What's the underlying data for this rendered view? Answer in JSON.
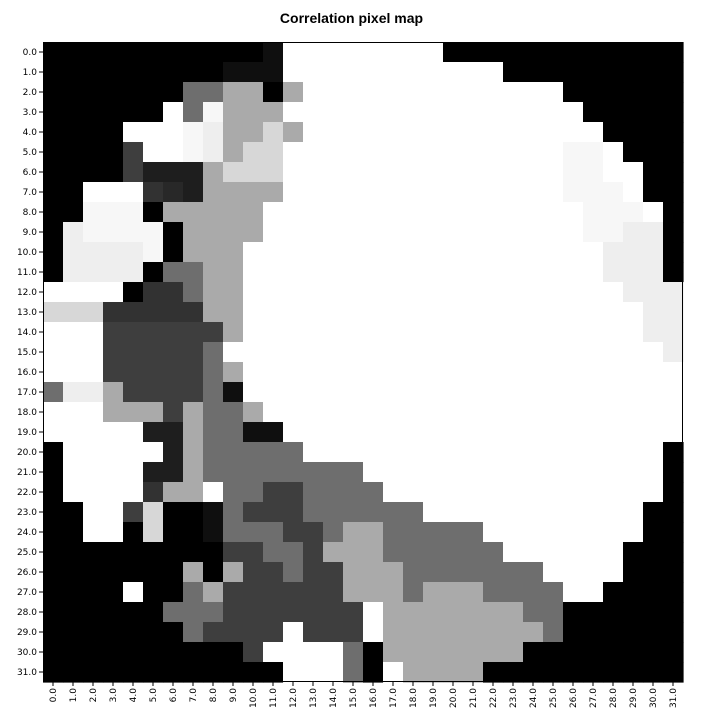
{
  "chart_data": {
    "type": "heatmap",
    "title": "Correlation pixel map",
    "xlabel": "",
    "ylabel": "",
    "x_ticks": [
      "0.0",
      "1.0",
      "2.0",
      "3.0",
      "4.0",
      "5.0",
      "6.0",
      "7.0",
      "8.0",
      "9.0",
      "10.0",
      "11.0",
      "12.0",
      "13.0",
      "14.0",
      "15.0",
      "16.0",
      "17.0",
      "18.0",
      "19.0",
      "20.0",
      "21.0",
      "22.0",
      "23.0",
      "24.0",
      "25.0",
      "26.0",
      "27.0",
      "28.0",
      "29.0",
      "30.0",
      "31.0"
    ],
    "y_ticks": [
      "0.0",
      "1.0",
      "2.0",
      "3.0",
      "4.0",
      "5.0",
      "6.0",
      "7.0",
      "8.0",
      "9.0",
      "10.0",
      "11.0",
      "12.0",
      "13.0",
      "14.0",
      "15.0",
      "16.0",
      "17.0",
      "18.0",
      "19.0",
      "20.0",
      "21.0",
      "22.0",
      "23.0",
      "24.0",
      "25.0",
      "26.0",
      "27.0",
      "28.0",
      "29.0",
      "30.0",
      "31.0"
    ],
    "colormap": "grayscale (0 = black, 255 = white)",
    "rows": [
      "ZZZZZZZZZZZRWWWWWWWWZZZZZZZZZZZZ",
      "ZZZZZZZZZRRRWWWWWWWWWWWZZZZZZZZZ",
      "ZZZZZZZHHMMZMWWWWWWWWWWWWWZZZZZZ",
      "ZZZZZZWHVMMMWWWWWWWWWWWWWWWZZZZZ",
      "ZZZZWWWVUMMSMWWWWWWWWWWWWWWWZZZZ",
      "ZZZZNWWVUMSSWWWWWWWWWWWWWWVVWZZZ",
      "ZZZZNQQQMSSSWWWWWWWWWWWWWWVVWWZZ",
      "ZZWWWOPQMMMMWWWWWWWWWWWWWWVVVWZZ",
      "ZZVVVZMMMMMWWWWWWWWWWWWWWWWVVVWZ",
      "ZUVVVVZMMMMWWWWWWWWWWWWWWWWVVUUZ",
      "ZUUUUVZMMMWWWWWWWWWWWWWWWWWWUUUZ",
      "ZUUUUZHHMMWWWWWWWWWWWWWWWWWWUUUZ",
      "WWWWZOOHMMWWWWWWWWWWWWWWWWWWWUUU",
      "SSSOOOOOMMWWWWWWWWWWWWWWWWWWWWUU",
      "WWWNNNNNNMWWWWWWWWWWWWWWWWWWWWUU",
      "WWWNNNNNHWWWWWWWWWWWWWWWWWWWWWWU",
      "WWWNNNNNHMWWWWWWWWWWWWWWWWWWWWWW",
      "HUUMNNNNHRWWWWWWWWWWWWWWWWWWWWWW",
      "WWWMMMNMHHMWWWWWWWWWWWWWWWWWWWWW",
      "WWWWWQQMHHRRWWWWWWWWWWWWWWWWWWWW",
      "ZWWWWWQMHHHHHWWWWWWWWWWWWWWWWWWZ",
      "ZWWWWQQMHHHHHHHHWWWWWWWWWWWWWWWZ",
      "ZWWWWOMMWHHNNHHHHWWWWWWWWWWWWWWZ",
      "ZZWWNSZZRHNNNHHHHHHWWWWWWWWWWWZZ",
      "ZZWWZSZZRHHHNNHMMHHHHHWWWWWWWWZZ",
      "ZZZZZZZZZNNHHNMMMHHHHHHWWWWWWZZZ",
      "ZZZZZZZMZMNNHNNMMMHHHHHHHWWWWZZZ",
      "ZZZZWZZHMNNNNNNMMMHMMMHHHHWWZZZZ",
      "ZZZZZZHHHNNNNNNNWMMMMMMMHHZZZZZZ",
      "ZZZZZZZHNNNNWNNNWMMMMMMMMHZZZZZZ",
      "ZZZZZZZZZZNWWWWHZMMMMMMMZZZZZZZZ",
      "ZZZZZZZZZZZZWWWHZWMMMMZZZZZZZZZZ"
    ],
    "legend": {
      "Z": 0,
      "R": 15,
      "Q": 30,
      "P": 40,
      "O": 50,
      "N": 62,
      "H": 110,
      "M": 170,
      "S": 215,
      "U": 238,
      "V": 247,
      "W": 255
    }
  }
}
